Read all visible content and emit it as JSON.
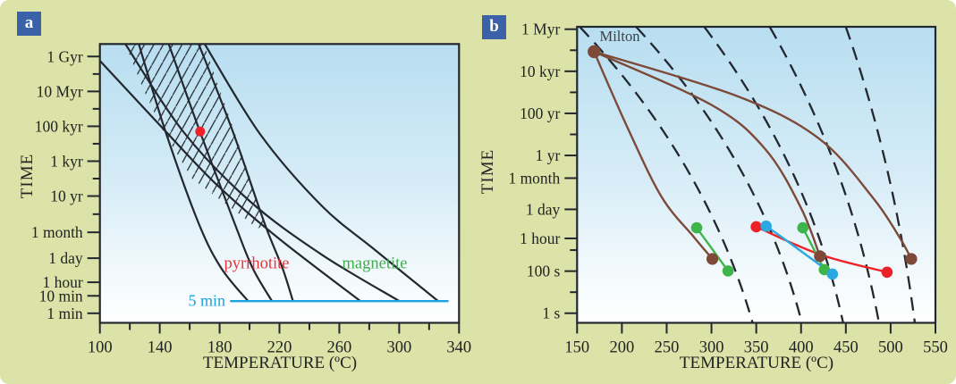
{
  "colors": {
    "background": "#dce3a8",
    "panel_gradient_top": "#b7def0",
    "panel_gradient_bottom": "#ffffff",
    "badge": "#3b61a8",
    "badge_text": "#ffffff",
    "axis": "#23272e",
    "text": "#222222",
    "text_dark": "#3c4046",
    "red": "#ed2228",
    "green": "#3db54a",
    "blue": "#2aa9e0",
    "cyan": "#1ba3e0",
    "brown": "#7d4a39"
  },
  "chart_data": [
    {
      "panel": "a",
      "badge": "a",
      "type": "line",
      "xlabel": "TEMPERATURE (ºC)",
      "ylabel": "TIME",
      "x_range": [
        100,
        340
      ],
      "x_ticks": [
        100,
        140,
        180,
        220,
        260,
        300,
        340
      ],
      "x_minor_ticks": [
        120,
        160,
        200,
        240,
        280,
        320
      ],
      "y_ticks": [
        {
          "label": "1 Gyr",
          "logt": 16.499
        },
        {
          "label": "10 Myr",
          "logt": 14.499
        },
        {
          "label": "100 kyr",
          "logt": 12.499
        },
        {
          "label": "1 kyr",
          "logt": 10.499
        },
        {
          "label": "10 yr",
          "logt": 8.499
        },
        {
          "label": "1 month",
          "logt": 6.42
        },
        {
          "label": "1 day",
          "logt": 4.937
        },
        {
          "label": "1 hour",
          "logt": 3.556
        },
        {
          "label": "10 min",
          "logt": 2.778
        },
        {
          "label": "1 min",
          "logt": 1.778
        }
      ],
      "y_minor_ticks": [
        15.499,
        13.499,
        11.499,
        9.499,
        7.46
      ],
      "series": [
        {
          "name": "pyrrhotite",
          "curves": [
            [
              [
                126,
                17.22
              ],
              [
                144,
                12.16
              ],
              [
                166,
                6.94
              ],
              [
                181,
                4.38
              ],
              [
                199,
                2.477
              ]
            ],
            [
              [
                146,
                17.22
              ],
              [
                167,
                12.16
              ],
              [
                190,
                6.94
              ],
              [
                202,
                4.38
              ],
              [
                215,
                2.477
              ]
            ],
            [
              [
                166,
                17.22
              ],
              [
                189,
                12.16
              ],
              [
                210,
                6.94
              ],
              [
                222,
                4.38
              ],
              [
                229,
                2.477
              ]
            ]
          ]
        },
        {
          "name": "magnetite",
          "curves": [
            [
              [
                100,
                16.26
              ],
              [
                140,
                12.57
              ],
              [
                177,
                9.24
              ],
              [
                218,
                6.17
              ],
              [
                274,
                2.477
              ]
            ],
            [
              [
                117,
                17.22
              ],
              [
                156,
                12.16
              ],
              [
                200,
                8.22
              ],
              [
                248,
                5.15
              ],
              [
                300,
                2.477
              ]
            ],
            [
              [
                170,
                17.22
              ],
              [
                207,
                12.06
              ],
              [
                248,
                7.96
              ],
              [
                284,
                5.4
              ],
              [
                326,
                2.477
              ]
            ]
          ]
        }
      ],
      "hatch_region": [
        [
          117,
          17.22
        ],
        [
          169.5,
          17.22
        ],
        [
          190,
          12.16
        ],
        [
          200.6,
          9.5
        ],
        [
          207.8,
          7.45
        ],
        [
          209.6,
          6.79
        ],
        [
          205.4,
          6.63
        ],
        [
          193.4,
          7.45
        ],
        [
          161.7,
          9.5
        ],
        [
          142.6,
          12.16
        ],
        [
          129,
          14.62
        ]
      ],
      "five_min_line": {
        "label": "5 min",
        "logt": 2.477,
        "T_from": 187,
        "T_to": 333
      },
      "highlight_point": {
        "T": 167,
        "logt": 12.2,
        "time_estimate": "~50 kyr"
      },
      "series_labels": {
        "pyrrhotite": "pyrrhotite",
        "magnetite": "magnetite"
      },
      "label_colors": {
        "pyrrhotite": "#e4373d",
        "magnetite": "#3fae49",
        "five_min": "#1ba3e0"
      }
    },
    {
      "panel": "b",
      "badge": "b",
      "type": "line",
      "xlabel": "TEMPERATURE (ºC)",
      "ylabel": "TIME",
      "x_range": [
        150,
        550
      ],
      "x_ticks": [
        150,
        200,
        250,
        300,
        350,
        400,
        450,
        500,
        550
      ],
      "x_minor_ticks": [],
      "y_ticks": [
        {
          "label": "1 Myr",
          "logt": 13.499
        },
        {
          "label": "10 kyr",
          "logt": 11.499
        },
        {
          "label": "100 yr",
          "logt": 9.499
        },
        {
          "label": "1 yr",
          "logt": 7.499
        },
        {
          "label": "1 month",
          "logt": 6.42
        },
        {
          "label": "1 day",
          "logt": 4.937
        },
        {
          "label": "1 hour",
          "logt": 3.556
        },
        {
          "label": "100 s",
          "logt": 2.0
        },
        {
          "label": "1 s",
          "logt": 0.0
        }
      ],
      "y_minor_ticks": [
        12.499,
        10.499,
        8.499,
        3.0,
        1.0
      ],
      "milton": {
        "label": "Milton",
        "T": 169,
        "logt": 12.43,
        "time_estimate": "~100 kyr"
      },
      "cooling_paths": [
        {
          "color": "brown",
          "points": [
            [
              169,
              12.43
            ],
            [
              205,
              8.94
            ],
            [
              244,
              5.55
            ],
            [
              280,
              3.64
            ],
            [
              301,
              2.58
            ]
          ]
        },
        {
          "color": "brown",
          "points": [
            [
              169,
              12.43
            ],
            [
              300,
              9.9
            ],
            [
              360,
              7.8
            ],
            [
              400,
              5.0
            ],
            [
              421,
              2.71
            ]
          ]
        },
        {
          "color": "brown",
          "points": [
            [
              169,
              12.43
            ],
            [
              330,
              10.3
            ],
            [
              420,
              8.3
            ],
            [
              480,
              5.5
            ],
            [
              510,
              3.6
            ],
            [
              523,
              2.58
            ]
          ]
        }
      ],
      "sample_paths": [
        {
          "color": "red",
          "points": [
            [
              350,
              4.11
            ],
            [
              421,
              2.79
            ],
            [
              496,
              1.95
            ]
          ]
        },
        {
          "color": "green",
          "points": [
            [
              283.5,
              4.06
            ],
            [
              318.5,
              2.01
            ]
          ]
        },
        {
          "color": "green",
          "points": [
            [
              402,
              4.06
            ],
            [
              426,
              2.07
            ]
          ]
        },
        {
          "color": "blue",
          "points": [
            [
              361,
              4.14
            ],
            [
              379,
              3.6
            ],
            [
              435,
              1.86
            ]
          ]
        }
      ],
      "dashed_reference_curves": [
        {
          "from": [
            153,
            13.61
          ],
          "ctrl": [
            294,
            7.25
          ],
          "to": [
            346,
            -0.46
          ]
        },
        {
          "from": [
            216,
            13.61
          ],
          "ctrl": [
            354,
            7.25
          ],
          "to": [
            401,
            -0.46
          ]
        },
        {
          "from": [
            292,
            13.61
          ],
          "ctrl": [
            409,
            7.03
          ],
          "to": [
            447,
            -0.46
          ]
        },
        {
          "from": [
            365,
            13.61
          ],
          "ctrl": [
            454,
            7.03
          ],
          "to": [
            487,
            -0.46
          ]
        },
        {
          "from": [
            450,
            13.61
          ],
          "ctrl": [
            504,
            7.03
          ],
          "to": [
            527,
            -0.46
          ]
        }
      ]
    }
  ]
}
